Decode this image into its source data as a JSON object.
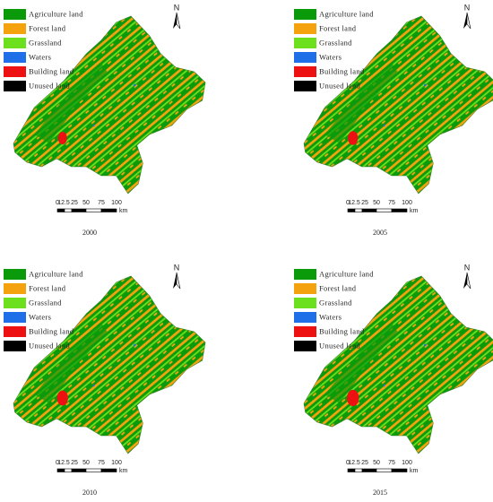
{
  "legend": [
    {
      "label": "Agriculture land",
      "color": "#0a9a0a"
    },
    {
      "label": "Forest land",
      "color": "#f5a20f"
    },
    {
      "label": "Grassland",
      "color": "#6de01e"
    },
    {
      "label": "Waters",
      "color": "#1f6fe8"
    },
    {
      "label": "Building land",
      "color": "#ee1111"
    },
    {
      "label": "Unused land",
      "color": "#000000"
    }
  ],
  "north": "N",
  "scale_bar": {
    "ticks": [
      "0",
      "12.5",
      "25",
      "50",
      "75",
      "100"
    ],
    "unit": "km"
  },
  "panels": [
    {
      "year": "2000"
    },
    {
      "year": "2005"
    },
    {
      "year": "2010"
    },
    {
      "year": "2015"
    }
  ]
}
